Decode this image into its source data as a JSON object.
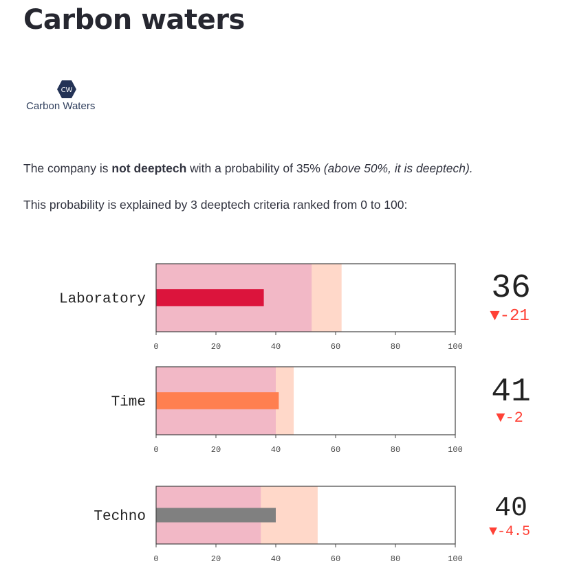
{
  "page": {
    "title": "Carbon waters",
    "logo_text": "Carbon Waters",
    "logo_mark": "CW"
  },
  "text": {
    "p1_prefix": "The company is ",
    "p1_bold": "not deeptech",
    "p1_middle": " with a probability of 35% ",
    "p1_italic": "(above 50%, it is deeptech).",
    "p2": "This probability is explained by 3 deeptech criteria ranked from 0 to 100:"
  },
  "colors": {
    "band_low": "#f2b8c6",
    "band_high": "#ffd8c9",
    "delta_down": "#ff4136",
    "frame": "#444444"
  },
  "chart_data": {
    "type": "bullet",
    "xlim": [
      0,
      100
    ],
    "ticks": [
      "0",
      "20",
      "40",
      "60",
      "80",
      "100"
    ],
    "indicators": [
      {
        "label": "Laboratory",
        "value": 36,
        "value_text": "36",
        "delta_text": "▼-21",
        "bar_color": "#dc143c",
        "bands": [
          52,
          62
        ]
      },
      {
        "label": "Time",
        "value": 41,
        "value_text": "41",
        "delta_text": "▼-2",
        "bar_color": "#ff7f50",
        "bands": [
          40,
          46
        ]
      },
      {
        "label": "Techno",
        "value": 40,
        "value_text": "40",
        "delta_text": "▼-4.5",
        "bar_color": "#808080",
        "bands": [
          35,
          54
        ]
      }
    ]
  }
}
